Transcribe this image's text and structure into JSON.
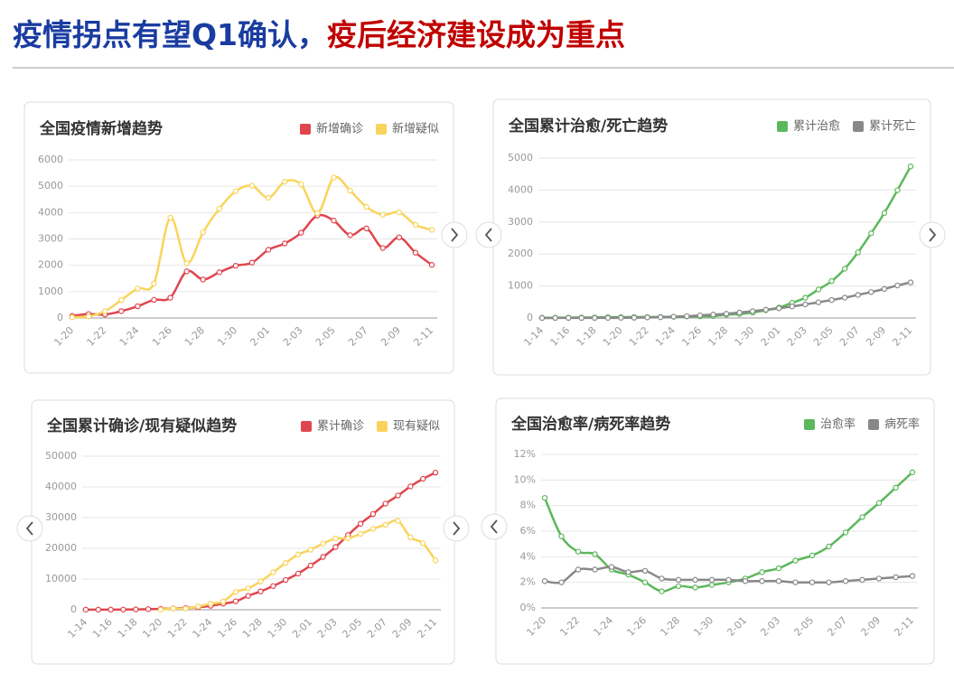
{
  "header": {
    "title_part1": "疫情拐点有望Q1确认，",
    "title_part2": "疫后经济建设成为重点"
  },
  "chart_data": [
    {
      "type": "line",
      "title": "全国疫情新增趋势",
      "legend": "top-right",
      "grid": true,
      "categories": [
        "1-20",
        null,
        "1-22",
        null,
        "1-24",
        null,
        "1-26",
        null,
        "1-28",
        null,
        "1-30",
        null,
        "2-01",
        null,
        "2-03",
        null,
        "2-05",
        null,
        "2-07",
        null,
        "2-09",
        null,
        "2-11"
      ],
      "series": [
        {
          "name": "新增确诊",
          "color": "#e0464e",
          "values": [
            77,
            149,
            131,
            259,
            444,
            688,
            769,
            1771,
            1459,
            1737,
            1982,
            2102,
            2590,
            2829,
            3235,
            3887,
            3694,
            3143,
            3399,
            2656,
            3062,
            2478,
            2015
          ]
        },
        {
          "name": "新增疑似",
          "color": "#f9d45c",
          "values": [
            27,
            60,
            257,
            680,
            1118,
            1309,
            3806,
            2077,
            3248,
            4148,
            4812,
            5019,
            4562,
            5173,
            5072,
            3971,
            5328,
            4833,
            4214,
            3916,
            4008,
            3536,
            3342
          ]
        }
      ],
      "ylim": [
        0,
        6000
      ],
      "yticks": [
        0,
        1000,
        2000,
        3000,
        4000,
        5000,
        6000
      ]
    },
    {
      "type": "line",
      "title": "全国累计治愈/死亡趋势",
      "legend": "top-right",
      "grid": true,
      "categories": [
        "1-14",
        null,
        "1-16",
        null,
        "1-18",
        null,
        "1-20",
        null,
        "1-22",
        null,
        "1-24",
        null,
        "1-26",
        null,
        "1-28",
        null,
        "1-30",
        null,
        "2-01",
        null,
        "2-03",
        null,
        "2-05",
        null,
        "2-07",
        null,
        "2-09",
        null,
        "2-11"
      ],
      "series": [
        {
          "name": "累计治愈",
          "color": "#5cb85c",
          "values": [
            7,
            7,
            12,
            15,
            17,
            25,
            25,
            28,
            28,
            34,
            38,
            49,
            51,
            60,
            103,
            124,
            171,
            243,
            328,
            475,
            632,
            892,
            1153,
            1540,
            2050,
            2649,
            3281,
            3996,
            4740
          ]
        },
        {
          "name": "累计死亡",
          "color": "#888888",
          "values": [
            1,
            2,
            2,
            2,
            3,
            3,
            6,
            9,
            17,
            25,
            41,
            56,
            80,
            106,
            132,
            170,
            213,
            259,
            304,
            361,
            425,
            490,
            563,
            636,
            722,
            811,
            908,
            1016,
            1113
          ]
        }
      ],
      "ylim": [
        0,
        5000
      ],
      "yticks": [
        0,
        1000,
        2000,
        3000,
        4000,
        5000
      ]
    },
    {
      "type": "line",
      "title": "全国累计确诊/现有疑似趋势",
      "legend": "top-right",
      "grid": true,
      "categories": [
        "1-14",
        null,
        "1-16",
        null,
        "1-18",
        null,
        "1-20",
        null,
        "1-22",
        null,
        "1-24",
        null,
        "1-26",
        null,
        "1-28",
        null,
        "1-30",
        null,
        "2-01",
        null,
        "2-03",
        null,
        "2-05",
        null,
        "2-07",
        null,
        "2-09",
        null,
        "2-11"
      ],
      "series": [
        {
          "name": "累计确诊",
          "color": "#e0464e",
          "values": [
            41,
            41,
            45,
            62,
            121,
            198,
            291,
            440,
            571,
            830,
            1287,
            1975,
            2744,
            4515,
            5974,
            7711,
            9692,
            11791,
            14380,
            17205,
            20438,
            24324,
            28018,
            31161,
            34546,
            37198,
            40171,
            42638,
            44653
          ]
        },
        {
          "name": "现有疑似",
          "color": "#f9d45c",
          "values": [
            null,
            null,
            null,
            null,
            null,
            null,
            54,
            393,
            393,
            1072,
            1965,
            2684,
            5794,
            6973,
            9239,
            12167,
            15238,
            17988,
            19544,
            21558,
            23214,
            23260,
            24702,
            26359,
            27657,
            28942,
            23589,
            21675,
            16067
          ]
        }
      ],
      "ylim": [
        0,
        50000
      ],
      "yticks": [
        0,
        10000,
        20000,
        30000,
        40000,
        50000
      ]
    },
    {
      "type": "line",
      "title": "全国治愈率/病死率趋势",
      "legend": "top-right",
      "grid": true,
      "categories": [
        "1-20",
        null,
        "1-22",
        null,
        "1-24",
        null,
        "1-26",
        null,
        "1-28",
        null,
        "1-30",
        null,
        "2-01",
        null,
        "2-03",
        null,
        "2-05",
        null,
        "2-07",
        null,
        "2-09",
        null,
        "2-11"
      ],
      "series": [
        {
          "name": "治愈率",
          "color": "#5cb85c",
          "values": [
            8.6,
            5.6,
            4.4,
            4.2,
            3.0,
            2.6,
            2.0,
            1.3,
            1.7,
            1.6,
            1.8,
            2.0,
            2.3,
            2.8,
            3.1,
            3.7,
            4.1,
            4.8,
            5.9,
            7.1,
            8.2,
            9.4,
            10.6
          ]
        },
        {
          "name": "病死率",
          "color": "#888888",
          "values": [
            2.1,
            2.0,
            3.0,
            3.0,
            3.2,
            2.8,
            2.9,
            2.3,
            2.2,
            2.2,
            2.2,
            2.2,
            2.1,
            2.1,
            2.1,
            2.0,
            2.0,
            2.0,
            2.1,
            2.2,
            2.3,
            2.4,
            2.5
          ]
        }
      ],
      "ylim": [
        0,
        12
      ],
      "yticks": [
        {
          "value": 0,
          "label": "0%"
        },
        {
          "value": 2,
          "label": "2%"
        },
        {
          "value": 4,
          "label": "4%"
        },
        {
          "value": 6,
          "label": "6%"
        },
        {
          "value": 8,
          "label": "8%"
        },
        {
          "value": 10,
          "label": "10%"
        },
        {
          "value": 12,
          "label": "12%"
        }
      ]
    }
  ]
}
